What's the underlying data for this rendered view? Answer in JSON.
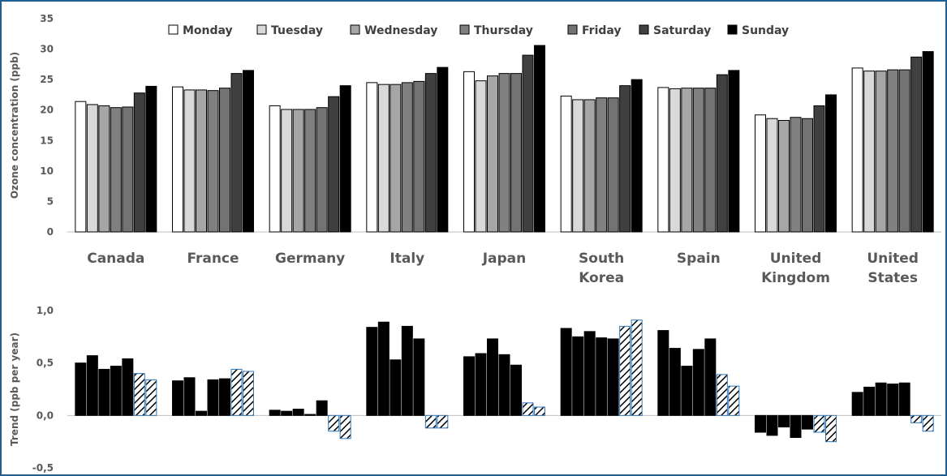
{
  "chart_data": [
    {
      "type": "bar",
      "ylabel": "Ozone concentration (ppb)",
      "ylim": [
        0,
        35
      ],
      "yticks": [
        "0",
        "5",
        "10",
        "15",
        "20",
        "25",
        "30",
        "35"
      ],
      "categories": [
        [
          "Canada"
        ],
        [
          "France"
        ],
        [
          "Germany"
        ],
        [
          "Italy"
        ],
        [
          "Japan"
        ],
        [
          "South",
          "Korea"
        ],
        [
          "Spain"
        ],
        [
          "United",
          "Kingdom"
        ],
        [
          "United",
          "States"
        ]
      ],
      "legend_position": "top",
      "series": [
        {
          "name": "Monday",
          "color": "#ffffff",
          "values": [
            21.4,
            23.8,
            20.7,
            24.5,
            26.3,
            22.3,
            23.7,
            19.2,
            26.9
          ]
        },
        {
          "name": "Tuesday",
          "color": "#d9d9d9",
          "values": [
            20.9,
            23.3,
            20.1,
            24.2,
            24.8,
            21.7,
            23.5,
            18.6,
            26.4
          ]
        },
        {
          "name": "Wednesday",
          "color": "#a6a6a6",
          "values": [
            20.7,
            23.3,
            20.1,
            24.2,
            25.6,
            21.7,
            23.6,
            18.3,
            26.4
          ]
        },
        {
          "name": "Thursday",
          "color": "#808080",
          "values": [
            20.4,
            23.2,
            20.1,
            24.5,
            26.0,
            22.0,
            23.6,
            18.8,
            26.6
          ]
        },
        {
          "name": "Friday",
          "color": "#737373",
          "values": [
            20.5,
            23.6,
            20.4,
            24.7,
            26.0,
            22.0,
            23.6,
            18.6,
            26.6
          ]
        },
        {
          "name": "Saturday",
          "color": "#404040",
          "values": [
            22.8,
            26.0,
            22.2,
            26.0,
            29.0,
            24.0,
            25.8,
            20.7,
            28.7
          ]
        },
        {
          "name": "Sunday",
          "color": "#000000",
          "values": [
            23.9,
            26.5,
            24.0,
            27.0,
            30.6,
            25.0,
            26.5,
            22.5,
            29.6
          ]
        }
      ]
    },
    {
      "type": "bar",
      "ylabel": "Trend (ppb per year)",
      "ylim": [
        -0.5,
        1.0
      ],
      "yticks": [
        "-0,5",
        "0,0",
        "0,5",
        "1,0"
      ],
      "note_style": "Saturday and Sunday bars hatched",
      "series": [
        {
          "name": "Monday",
          "values": [
            0.5,
            0.33,
            0.05,
            0.84,
            0.56,
            0.83,
            0.81,
            -0.16,
            0.22
          ]
        },
        {
          "name": "Tuesday",
          "values": [
            0.57,
            0.36,
            0.04,
            0.89,
            0.59,
            0.75,
            0.64,
            -0.19,
            0.27
          ]
        },
        {
          "name": "Wednesday",
          "values": [
            0.44,
            0.04,
            0.06,
            0.53,
            0.73,
            0.8,
            0.47,
            -0.11,
            0.31
          ]
        },
        {
          "name": "Thursday",
          "values": [
            0.47,
            0.34,
            0.01,
            0.85,
            0.58,
            0.74,
            0.63,
            -0.21,
            0.3
          ]
        },
        {
          "name": "Friday",
          "values": [
            0.54,
            0.35,
            0.14,
            0.73,
            0.48,
            0.73,
            0.73,
            -0.13,
            0.31
          ]
        },
        {
          "name": "Saturday",
          "values": [
            0.4,
            0.44,
            -0.15,
            -0.12,
            0.12,
            0.85,
            0.39,
            -0.16,
            -0.07
          ]
        },
        {
          "name": "Sunday",
          "values": [
            0.34,
            0.42,
            -0.22,
            -0.12,
            0.08,
            0.91,
            0.28,
            -0.25,
            -0.15
          ]
        }
      ]
    }
  ]
}
